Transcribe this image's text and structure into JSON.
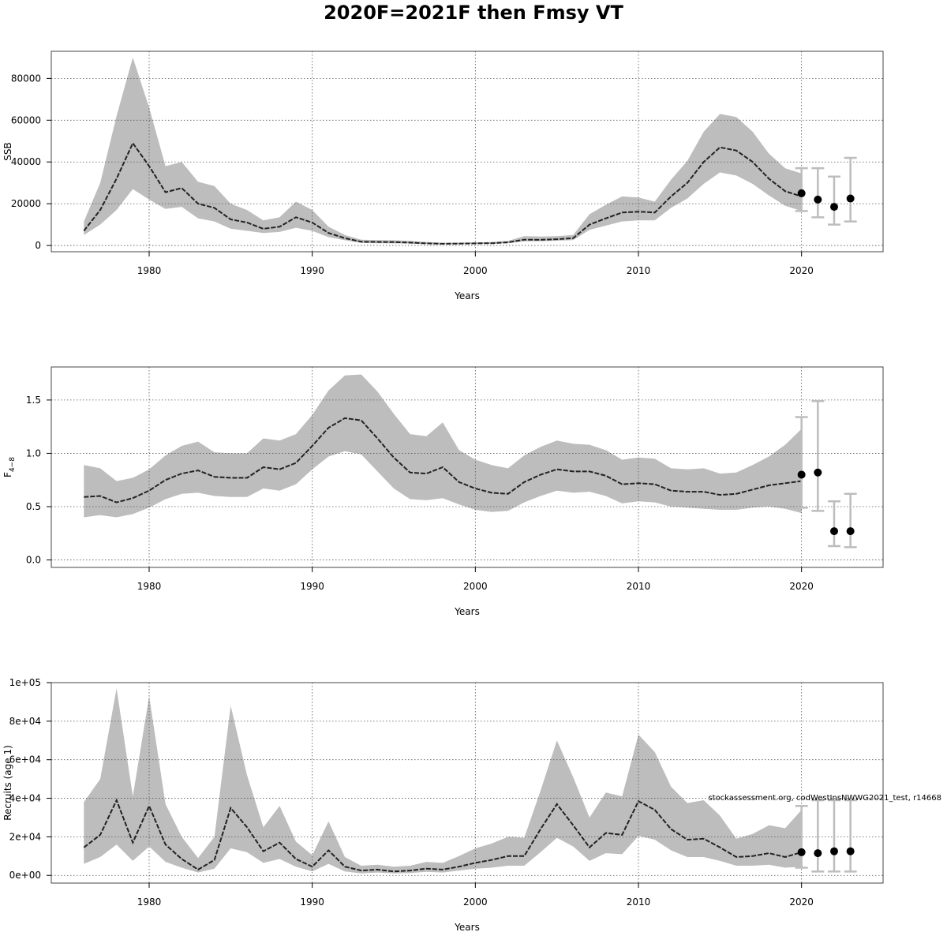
{
  "title": "2020F=2021F then Fmsy VT",
  "credit": "stockassessment.org, codWestInsNWWG2021_test, r14668",
  "chart_data": [
    {
      "type": "area",
      "id": "ssb",
      "ylabel": "SSB",
      "xlabel": "Years",
      "xlim": [
        1974,
        2025
      ],
      "ylim": [
        -3000,
        93000
      ],
      "xticks": [
        1980,
        1990,
        2000,
        2010,
        2020
      ],
      "xtick_labels": [
        "1980",
        "1990",
        "2000",
        "2010",
        "2020"
      ],
      "yticks": [
        0,
        20000,
        40000,
        60000,
        80000
      ],
      "ytick_labels": [
        "0",
        "20000",
        "40000",
        "60000",
        "80000"
      ],
      "years": [
        1976,
        1977,
        1978,
        1979,
        1980,
        1981,
        1982,
        1983,
        1984,
        1985,
        1986,
        1987,
        1988,
        1989,
        1990,
        1991,
        1992,
        1993,
        1994,
        1995,
        1996,
        1997,
        1998,
        1999,
        2000,
        2001,
        2002,
        2003,
        2004,
        2005,
        2006,
        2007,
        2008,
        2009,
        2010,
        2011,
        2012,
        2013,
        2014,
        2015,
        2016,
        2017,
        2018,
        2019,
        2020
      ],
      "estimate": [
        7000,
        17000,
        32000,
        49000,
        38000,
        25500,
        27500,
        20000,
        18000,
        12500,
        11000,
        8000,
        9000,
        13500,
        11000,
        6000,
        3500,
        1800,
        1700,
        1600,
        1400,
        1000,
        800,
        900,
        1000,
        1100,
        1500,
        2800,
        2700,
        3000,
        3500,
        10000,
        13000,
        15800,
        16200,
        15800,
        23500,
        30000,
        40000,
        47000,
        45500,
        40000,
        32000,
        26000,
        23500
      ],
      "lower": [
        5000,
        10000,
        17000,
        27000,
        22000,
        17500,
        18500,
        13000,
        11500,
        8000,
        7000,
        6000,
        6500,
        8500,
        7000,
        4000,
        2500,
        1200,
        1100,
        1000,
        900,
        600,
        500,
        600,
        700,
        800,
        1100,
        2000,
        2000,
        2300,
        2600,
        7500,
        9500,
        11500,
        12000,
        12000,
        18000,
        22500,
        29500,
        35000,
        33500,
        29500,
        24000,
        19000,
        16500
      ],
      "upper": [
        11500,
        30000,
        62000,
        90000,
        66000,
        38000,
        40000,
        30500,
        28500,
        20000,
        17000,
        12000,
        13500,
        21000,
        17000,
        9000,
        5000,
        2800,
        2600,
        2500,
        2200,
        1700,
        1300,
        1400,
        1500,
        1700,
        2200,
        4500,
        4300,
        4500,
        5000,
        15000,
        19500,
        23500,
        23000,
        21000,
        31500,
        40500,
        54500,
        63000,
        61500,
        54500,
        44000,
        37000,
        34500
      ],
      "projection": {
        "years": [
          2020,
          2021,
          2022,
          2023
        ],
        "median": [
          25000,
          22000,
          18500,
          22500
        ],
        "lower": [
          16500,
          13500,
          10000,
          11500
        ],
        "upper": [
          37000,
          37000,
          33000,
          42000
        ]
      }
    },
    {
      "type": "area",
      "id": "fbar",
      "ylabel": "F",
      "ylabel_sub": "4−8",
      "xlabel": "Years",
      "xlim": [
        1974,
        2025
      ],
      "ylim": [
        -0.07,
        1.81
      ],
      "xticks": [
        1980,
        1990,
        2000,
        2010,
        2020
      ],
      "xtick_labels": [
        "1980",
        "1990",
        "2000",
        "2010",
        "2020"
      ],
      "yticks": [
        0.0,
        0.5,
        1.0,
        1.5
      ],
      "ytick_labels": [
        "0.0",
        "0.5",
        "1.0",
        "1.5"
      ],
      "years": [
        1976,
        1977,
        1978,
        1979,
        1980,
        1981,
        1982,
        1983,
        1984,
        1985,
        1986,
        1987,
        1988,
        1989,
        1990,
        1991,
        1992,
        1993,
        1994,
        1995,
        1996,
        1997,
        1998,
        1999,
        2000,
        2001,
        2002,
        2003,
        2004,
        2005,
        2006,
        2007,
        2008,
        2009,
        2010,
        2011,
        2012,
        2013,
        2014,
        2015,
        2016,
        2017,
        2018,
        2019,
        2020
      ],
      "estimate": [
        0.59,
        0.6,
        0.54,
        0.58,
        0.65,
        0.75,
        0.81,
        0.84,
        0.78,
        0.77,
        0.77,
        0.87,
        0.85,
        0.91,
        1.07,
        1.24,
        1.33,
        1.31,
        1.14,
        0.96,
        0.82,
        0.81,
        0.87,
        0.73,
        0.67,
        0.63,
        0.62,
        0.73,
        0.8,
        0.85,
        0.83,
        0.83,
        0.79,
        0.71,
        0.72,
        0.71,
        0.65,
        0.64,
        0.64,
        0.61,
        0.62,
        0.66,
        0.7,
        0.72,
        0.74
      ],
      "lower": [
        0.4,
        0.42,
        0.4,
        0.43,
        0.49,
        0.57,
        0.62,
        0.63,
        0.6,
        0.59,
        0.59,
        0.67,
        0.65,
        0.71,
        0.85,
        0.97,
        1.02,
        0.99,
        0.83,
        0.67,
        0.57,
        0.56,
        0.58,
        0.52,
        0.47,
        0.45,
        0.46,
        0.54,
        0.6,
        0.65,
        0.63,
        0.64,
        0.6,
        0.53,
        0.55,
        0.54,
        0.5,
        0.49,
        0.48,
        0.47,
        0.47,
        0.49,
        0.5,
        0.48,
        0.44
      ],
      "upper": [
        0.89,
        0.86,
        0.74,
        0.77,
        0.85,
        0.98,
        1.07,
        1.11,
        1.01,
        1.0,
        1.0,
        1.14,
        1.12,
        1.18,
        1.36,
        1.59,
        1.73,
        1.74,
        1.58,
        1.37,
        1.18,
        1.16,
        1.29,
        1.03,
        0.94,
        0.89,
        0.86,
        0.98,
        1.06,
        1.12,
        1.09,
        1.08,
        1.03,
        0.94,
        0.96,
        0.95,
        0.86,
        0.85,
        0.86,
        0.81,
        0.82,
        0.89,
        0.97,
        1.08,
        1.23
      ],
      "projection": {
        "years": [
          2020,
          2021,
          2022,
          2023
        ],
        "median": [
          0.8,
          0.82,
          0.27,
          0.27
        ],
        "lower": [
          0.49,
          0.46,
          0.13,
          0.12
        ],
        "upper": [
          1.34,
          1.49,
          0.55,
          0.62
        ]
      }
    },
    {
      "type": "area",
      "id": "recruits",
      "ylabel": "Recruits (age 1)",
      "xlabel": "Years",
      "xlim": [
        1974,
        2025
      ],
      "ylim": [
        -4000,
        100000
      ],
      "xticks": [
        1980,
        1990,
        2000,
        2010,
        2020
      ],
      "xtick_labels": [
        "1980",
        "1990",
        "2000",
        "2010",
        "2020"
      ],
      "yticks": [
        0,
        20000,
        40000,
        60000,
        80000,
        100000
      ],
      "ytick_labels": [
        "0e+00",
        "2e+04",
        "4e+04",
        "6e+04",
        "8e+04",
        "1e+05"
      ],
      "years": [
        1976,
        1977,
        1978,
        1979,
        1980,
        1981,
        1982,
        1983,
        1984,
        1985,
        1986,
        1987,
        1988,
        1989,
        1990,
        1991,
        1992,
        1993,
        1994,
        1995,
        1996,
        1997,
        1998,
        1999,
        2000,
        2001,
        2002,
        2003,
        2004,
        2005,
        2006,
        2007,
        2008,
        2009,
        2010,
        2011,
        2012,
        2013,
        2014,
        2015,
        2016,
        2017,
        2018,
        2019,
        2020
      ],
      "estimate": [
        14500,
        21000,
        39000,
        17000,
        36000,
        16000,
        8500,
        3000,
        8000,
        35000,
        25000,
        12500,
        17000,
        8500,
        4500,
        13000,
        4500,
        2500,
        3000,
        2000,
        2500,
        3500,
        3000,
        4500,
        6500,
        8000,
        10000,
        10000,
        24000,
        37000,
        26000,
        14500,
        22000,
        21000,
        38500,
        34000,
        24000,
        18500,
        19000,
        14500,
        9500,
        10000,
        11500,
        9500,
        12000
      ],
      "lower": [
        6000,
        9500,
        16000,
        7500,
        15000,
        7000,
        4000,
        1500,
        3500,
        14000,
        12000,
        6500,
        8500,
        4500,
        2000,
        6000,
        2000,
        1000,
        1500,
        1000,
        1200,
        1800,
        1500,
        2500,
        3500,
        4000,
        5000,
        5000,
        12000,
        19500,
        15000,
        7500,
        11500,
        11000,
        20500,
        18500,
        13000,
        9500,
        9500,
        7500,
        5000,
        5000,
        5500,
        4000,
        4500
      ],
      "upper": [
        38000,
        50000,
        97000,
        41000,
        93000,
        37000,
        20000,
        9000,
        20000,
        88000,
        52000,
        25000,
        36000,
        17500,
        10500,
        28000,
        9500,
        5000,
        5500,
        4500,
        5000,
        7000,
        6500,
        10000,
        14000,
        16500,
        20000,
        19500,
        44000,
        70000,
        51000,
        30000,
        43000,
        41000,
        73000,
        64000,
        46000,
        37500,
        39000,
        31000,
        19000,
        21500,
        26000,
        24500,
        34000
      ],
      "projection": {
        "years": [
          2020,
          2021,
          2022,
          2023
        ],
        "median": [
          12000,
          11500,
          12500,
          12500
        ],
        "lower": [
          4000,
          2000,
          2000,
          2000
        ],
        "upper": [
          36000,
          39000,
          39000,
          39000
        ]
      }
    }
  ]
}
